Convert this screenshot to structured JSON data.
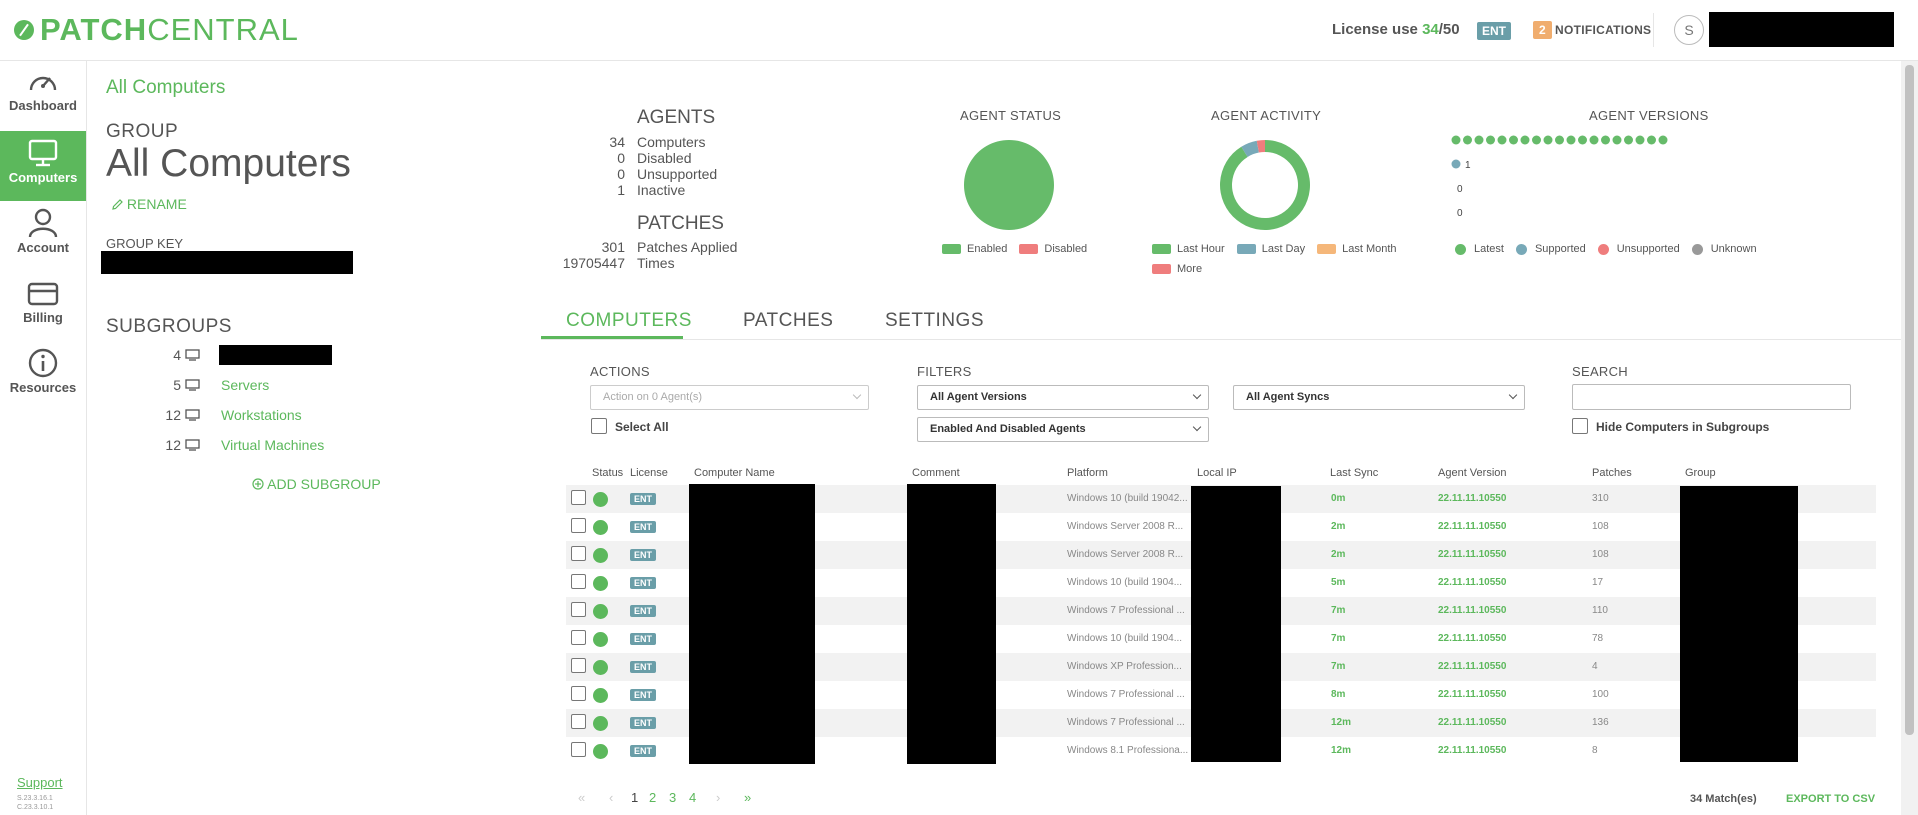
{
  "header": {
    "logo_bold": "PATCH",
    "logo_light": "CENTRAL",
    "license_label": "License use",
    "license_used": "34",
    "license_total": "/50",
    "tier_badge": "ENT",
    "notification_count": "2",
    "notifications_label": "NOTIFICATIONS",
    "avatar_initial": "S"
  },
  "nav": {
    "items": [
      {
        "label": "Dashboard",
        "icon": "gauge-icon"
      },
      {
        "label": "Computers",
        "icon": "monitor-icon"
      },
      {
        "label": "Account",
        "icon": "user-icon"
      },
      {
        "label": "Billing",
        "icon": "credit-card-icon"
      },
      {
        "label": "Resources",
        "icon": "info-icon"
      }
    ],
    "support": "Support",
    "version_1": "S.23.3.16.1",
    "version_2": "C.23.3.10.1"
  },
  "group": {
    "breadcrumb": "All Computers",
    "label": "GROUP",
    "title": "All Computers",
    "rename": "RENAME",
    "key_label": "GROUP KEY",
    "subgroups_label": "SUBGROUPS",
    "subgroups": [
      {
        "count": "4",
        "name": ""
      },
      {
        "count": "5",
        "name": "Servers"
      },
      {
        "count": "12",
        "name": "Workstations"
      },
      {
        "count": "12",
        "name": "Virtual Machines"
      }
    ],
    "add_subgroup": "ADD SUBGROUP"
  },
  "stats": {
    "agents_head": "AGENTS",
    "agents": [
      {
        "n": "34",
        "t": "Computers"
      },
      {
        "n": "0",
        "t": "Disabled"
      },
      {
        "n": "0",
        "t": "Unsupported"
      },
      {
        "n": "1",
        "t": "Inactive"
      }
    ],
    "patches_head": "PATCHES",
    "patches": [
      {
        "n": "301",
        "t": "Patches Applied"
      },
      {
        "n": "19705447",
        "t": "Times"
      }
    ]
  },
  "charts": {
    "status_title": "AGENT STATUS",
    "status_legend": [
      "Enabled",
      "Disabled"
    ],
    "activity_title": "AGENT ACTIVITY",
    "activity_legend": [
      "Last Hour",
      "Last Day",
      "Last Month",
      "More"
    ],
    "versions_title": "AGENT VERSIONS",
    "versions_legend": [
      "Latest",
      "Supported",
      "Unsupported",
      "Unknown"
    ],
    "colors": {
      "green": "#66bb6a",
      "blue": "#78a9b8",
      "orange": "#f5b77a",
      "red": "#ef7d7d",
      "gray": "#999999"
    }
  },
  "chart_data": [
    {
      "type": "pie",
      "title": "AGENT STATUS",
      "categories": [
        "Enabled",
        "Disabled"
      ],
      "values": [
        34,
        0
      ]
    },
    {
      "type": "pie",
      "title": "AGENT ACTIVITY",
      "categories": [
        "Last Hour",
        "Last Day",
        "Last Month",
        "More"
      ],
      "values": [
        31,
        2,
        0,
        1
      ]
    },
    {
      "type": "scatter",
      "title": "AGENT VERSIONS",
      "categories": [
        "Latest",
        "Supported",
        "Unsupported",
        "Unknown"
      ],
      "values": [
        33,
        1,
        0,
        0
      ]
    }
  ],
  "tabs": [
    {
      "label": "COMPUTERS",
      "active": true
    },
    {
      "label": "PATCHES",
      "active": false
    },
    {
      "label": "SETTINGS",
      "active": false
    }
  ],
  "controls": {
    "actions_label": "ACTIONS",
    "actions_select": "Action on 0 Agent(s)",
    "select_all": "Select All",
    "filters_label": "FILTERS",
    "filter_versions": "All Agent Versions",
    "filter_agents": "Enabled And Disabled Agents",
    "filter_syncs": "All Agent Syncs",
    "search_label": "SEARCH",
    "search_placeholder": "",
    "hide_subgroups": "Hide Computers in Subgroups"
  },
  "table": {
    "columns": [
      "Status",
      "License",
      "Computer Name",
      "Comment",
      "Platform",
      "Local IP",
      "Last Sync",
      "Agent Version",
      "Patches",
      "Group"
    ],
    "rows": [
      {
        "license": "ENT",
        "platform": "Windows 10 (build 19042...",
        "sync": "0m",
        "version": "22.11.11.10550",
        "patches": "310"
      },
      {
        "license": "ENT",
        "platform": "Windows Server 2008 R...",
        "sync": "2m",
        "version": "22.11.11.10550",
        "patches": "108"
      },
      {
        "license": "ENT",
        "platform": "Windows Server 2008 R...",
        "sync": "2m",
        "version": "22.11.11.10550",
        "patches": "108"
      },
      {
        "license": "ENT",
        "platform": "Windows 10 (build 1904...",
        "sync": "5m",
        "version": "22.11.11.10550",
        "patches": "17"
      },
      {
        "license": "ENT",
        "platform": "Windows 7 Professional ...",
        "sync": "7m",
        "version": "22.11.11.10550",
        "patches": "110"
      },
      {
        "license": "ENT",
        "platform": "Windows 10 (build 1904...",
        "sync": "7m",
        "version": "22.11.11.10550",
        "patches": "78"
      },
      {
        "license": "ENT",
        "platform": "Windows XP Profession...",
        "sync": "7m",
        "version": "22.11.11.10550",
        "patches": "4"
      },
      {
        "license": "ENT",
        "platform": "Windows 7 Professional ...",
        "sync": "8m",
        "version": "22.11.11.10550",
        "patches": "100"
      },
      {
        "license": "ENT",
        "platform": "Windows 7 Professional ...",
        "sync": "12m",
        "version": "22.11.11.10550",
        "patches": "136"
      },
      {
        "license": "ENT",
        "platform": "Windows 8.1 Professiona...",
        "sync": "12m",
        "version": "22.11.11.10550",
        "patches": "8"
      }
    ]
  },
  "pagination": {
    "first": "«",
    "prev": "‹",
    "pages": [
      "1",
      "2",
      "3",
      "4"
    ],
    "next": "›",
    "last": "»",
    "matches": "34 Match(es)",
    "export": "EXPORT TO CSV"
  }
}
